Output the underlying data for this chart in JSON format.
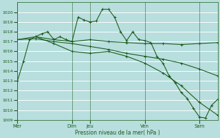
{
  "bg_color": "#b8dede",
  "grid_color": "#d0eeee",
  "line_color": "#1a5c1a",
  "ylabel": "Pression niveau de la mer( hPa )",
  "ylim": [
    1009,
    1021
  ],
  "yticks": [
    1009,
    1010,
    1011,
    1012,
    1013,
    1014,
    1015,
    1016,
    1017,
    1018,
    1019,
    1020
  ],
  "day_tick_positions": [
    0,
    72,
    96,
    168,
    240
  ],
  "day_tick_labels": [
    "Mer",
    "Dim",
    "Jeu",
    "Ven",
    "Sam"
  ],
  "xmax": 264,
  "lines": [
    {
      "x": [
        0,
        8,
        16,
        24,
        32,
        40,
        48,
        56,
        64,
        72,
        80,
        88,
        96,
        104,
        112,
        120,
        128,
        136,
        144,
        152,
        160,
        168,
        176,
        184,
        192,
        200,
        208,
        216,
        224,
        232,
        240,
        248,
        256,
        264
      ],
      "y": [
        1013,
        1015,
        1017.2,
        1017.5,
        1017.8,
        1018,
        1017.2,
        1017.5,
        1017.2,
        1017.0,
        1019.5,
        1019.2,
        1019.0,
        1019.1,
        1020.3,
        1020.3,
        1019.5,
        1018.0,
        1017.1,
        1018.0,
        1017.2,
        1017.1,
        1016.9,
        1015.5,
        1014.8,
        1013.5,
        1012.8,
        1011.8,
        1011.2,
        1010.2,
        1009.3,
        1009.2,
        1010.5,
        1011.1
      ]
    },
    {
      "x": [
        0,
        24,
        48,
        72,
        96,
        120,
        144,
        168,
        192,
        216,
        240,
        264
      ],
      "y": [
        1017.2,
        1017.5,
        1017.2,
        1017.0,
        1017.2,
        1017.0,
        1016.9,
        1016.8,
        1016.8,
        1016.7,
        1016.8,
        1016.9
      ]
    },
    {
      "x": [
        0,
        24,
        48,
        72,
        96,
        120,
        144,
        168,
        192,
        216,
        240,
        264
      ],
      "y": [
        1017.2,
        1017.3,
        1017.0,
        1016.8,
        1016.5,
        1016.2,
        1015.8,
        1015.5,
        1015.2,
        1014.8,
        1014.2,
        1013.5
      ]
    },
    {
      "x": [
        24,
        48,
        72,
        96,
        120,
        144,
        168,
        192,
        216,
        240,
        264
      ],
      "y": [
        1017.5,
        1016.8,
        1016.0,
        1015.8,
        1016.0,
        1015.5,
        1014.8,
        1013.8,
        1012.5,
        1010.8,
        1009.5
      ]
    }
  ]
}
